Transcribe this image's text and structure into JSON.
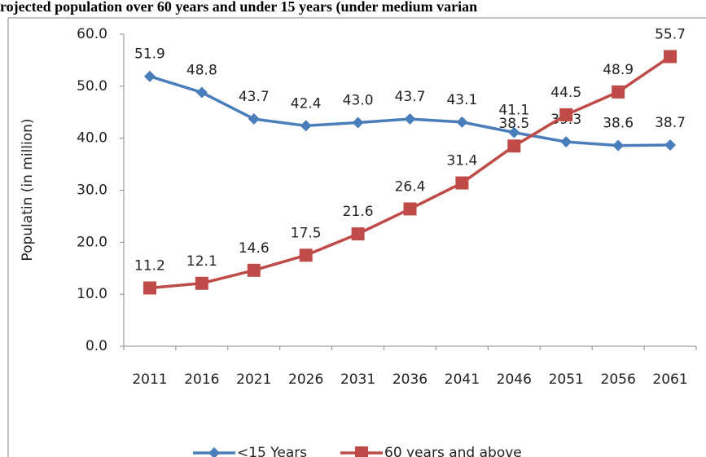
{
  "chart_data": {
    "type": "line",
    "title": "rojected population over 60 years and under 15 years (under medium varian",
    "y_label": "Populatin (in million)",
    "categories": [
      "2011",
      "2016",
      "2021",
      "2026",
      "2031",
      "2036",
      "2041",
      "2046",
      "2051",
      "2056",
      "2061"
    ],
    "series": [
      {
        "name": "<15 Years",
        "color": "#4a7ebb",
        "marker": "diamond",
        "values": [
          51.9,
          48.8,
          43.7,
          42.4,
          43.0,
          43.7,
          43.1,
          41.1,
          39.3,
          38.6,
          38.7
        ],
        "value_labels": [
          "51.9",
          "48.8",
          "43.7",
          "42.4",
          "43.0",
          "43.7",
          "43.1",
          "41.1",
          "39.3",
          "38.6",
          "38.7"
        ]
      },
      {
        "name": "60 years and above",
        "color": "#be4b48",
        "marker": "square",
        "values": [
          11.2,
          12.1,
          14.6,
          17.5,
          21.6,
          26.4,
          31.4,
          38.5,
          44.5,
          48.9,
          55.7
        ],
        "value_labels": [
          "11.2",
          "12.1",
          "14.6",
          "17.5",
          "21.6",
          "26.4",
          "31.4",
          "38.5",
          "44.5",
          "48.9",
          "55.7"
        ]
      }
    ],
    "ylim": [
      0,
      60
    ],
    "yticks": [
      {
        "value": 0,
        "label": "0.0"
      },
      {
        "value": 10,
        "label": "10.0"
      },
      {
        "value": 20,
        "label": "20.0"
      },
      {
        "value": 30,
        "label": "30.0"
      },
      {
        "value": 40,
        "label": "40.0"
      },
      {
        "value": 50,
        "label": "50.0"
      },
      {
        "value": 60,
        "label": "60.0"
      }
    ],
    "legend": "bottom"
  }
}
